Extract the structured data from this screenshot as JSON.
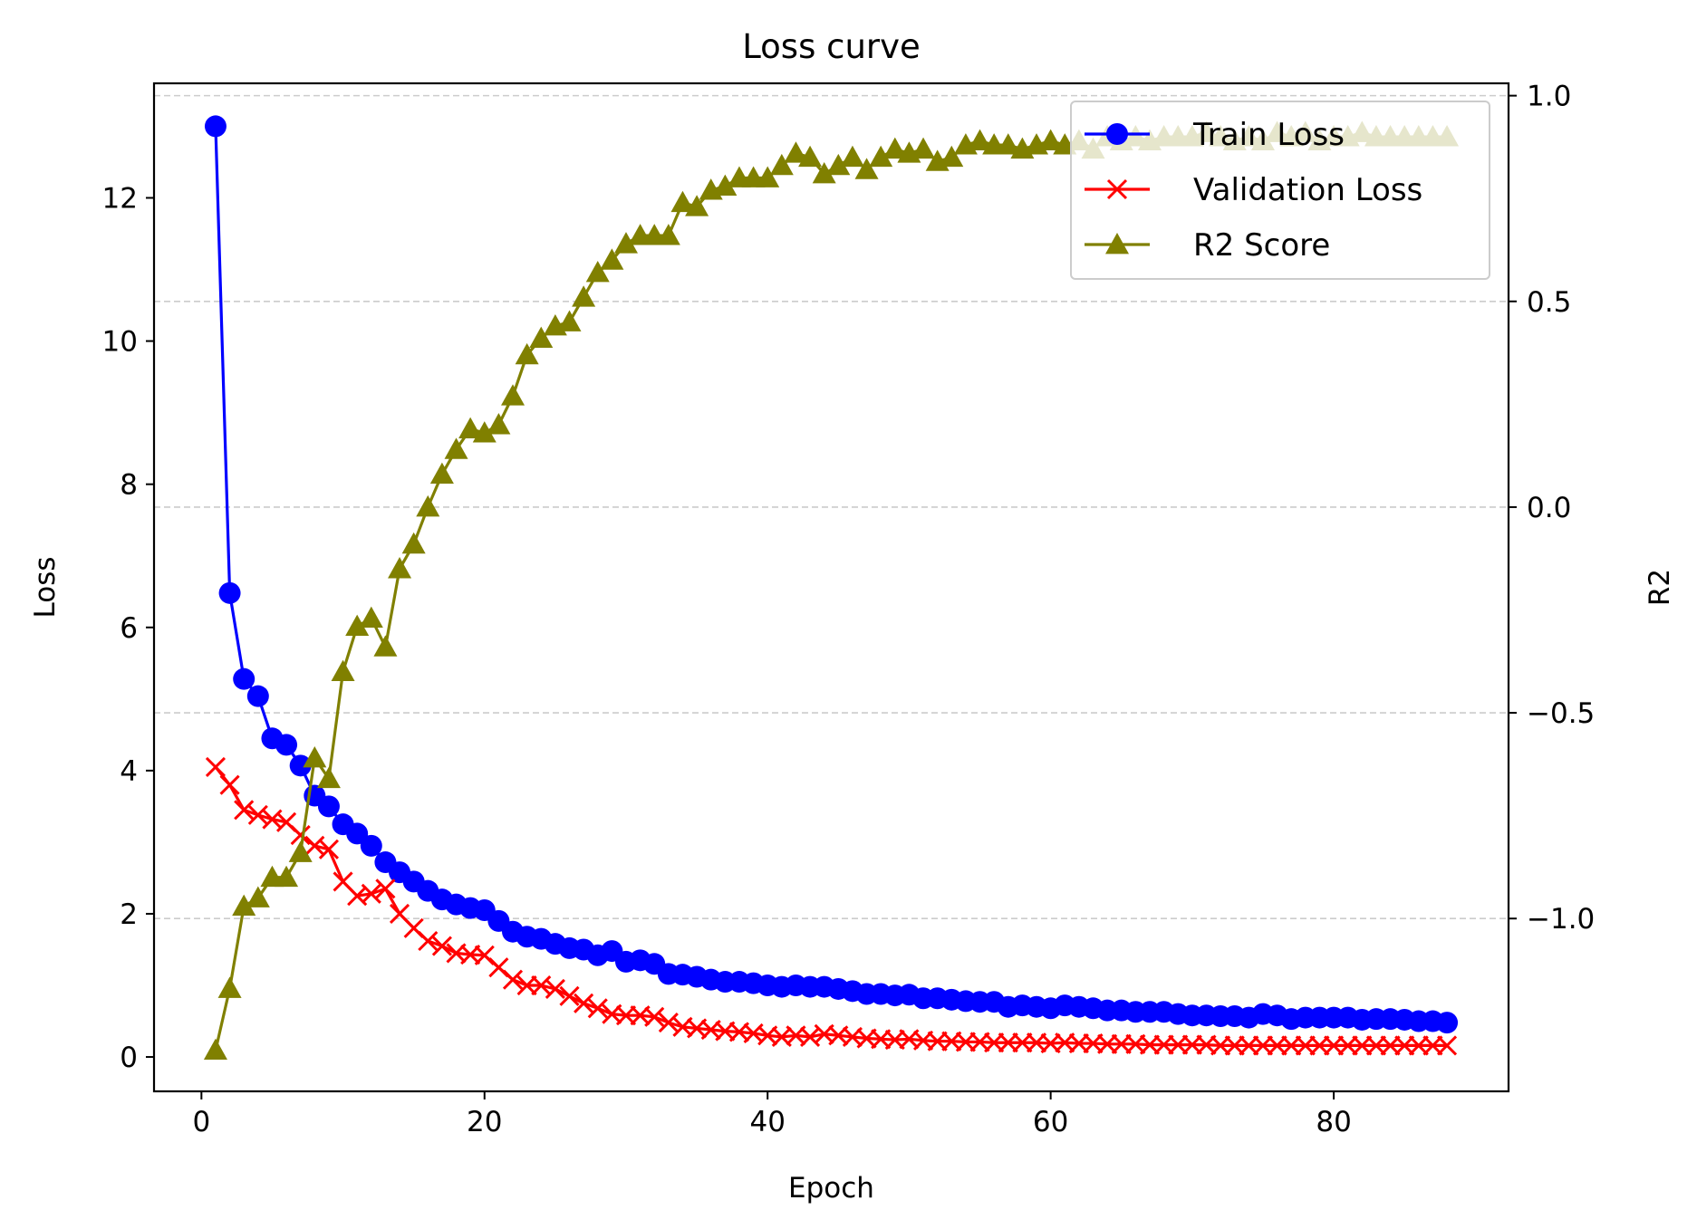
{
  "chart_data": {
    "type": "line",
    "title": "Loss curve",
    "xlabel": "Epoch",
    "ylabel": "Loss",
    "y2label": "R2",
    "xlim": [
      -3.35,
      92.35
    ],
    "ylim": [
      -0.48,
      13.6
    ],
    "y2lim": [
      -1.42,
      1.03
    ],
    "x_ticks": [
      0,
      20,
      40,
      60,
      80
    ],
    "y_ticks": [
      0,
      2,
      4,
      6,
      8,
      10,
      12
    ],
    "y2_ticks": [
      -1.0,
      -0.5,
      0.0,
      0.5,
      1.0
    ],
    "y2_tick_labels": [
      "−1.0",
      "−0.5",
      "0.0",
      "0.5",
      "1.0"
    ],
    "grid": "horizontal dashed on R2 axis",
    "legend_position": "top-right",
    "x": [
      1,
      2,
      3,
      4,
      5,
      6,
      7,
      8,
      9,
      10,
      11,
      12,
      13,
      14,
      15,
      16,
      17,
      18,
      19,
      20,
      21,
      22,
      23,
      24,
      25,
      26,
      27,
      28,
      29,
      30,
      31,
      32,
      33,
      34,
      35,
      36,
      37,
      38,
      39,
      40,
      41,
      42,
      43,
      44,
      45,
      46,
      47,
      48,
      49,
      50,
      51,
      52,
      53,
      54,
      55,
      56,
      57,
      58,
      59,
      60,
      61,
      62,
      63,
      64,
      65,
      66,
      67,
      68,
      69,
      70,
      71,
      72,
      73,
      74,
      75,
      76,
      77,
      78,
      79,
      80,
      81,
      82,
      83,
      84,
      85,
      86,
      87,
      88
    ],
    "series": [
      {
        "name": "Train Loss",
        "axis": "left",
        "color": "#0000ff",
        "marker": "circle",
        "values": [
          13.0,
          6.48,
          5.28,
          5.04,
          4.45,
          4.36,
          4.07,
          3.65,
          3.5,
          3.25,
          3.12,
          2.95,
          2.72,
          2.58,
          2.45,
          2.32,
          2.2,
          2.13,
          2.08,
          2.05,
          1.9,
          1.75,
          1.68,
          1.65,
          1.58,
          1.52,
          1.5,
          1.42,
          1.48,
          1.33,
          1.35,
          1.3,
          1.16,
          1.15,
          1.12,
          1.08,
          1.05,
          1.05,
          1.03,
          1.0,
          0.98,
          1.0,
          0.98,
          0.98,
          0.95,
          0.92,
          0.88,
          0.88,
          0.86,
          0.87,
          0.82,
          0.82,
          0.8,
          0.78,
          0.77,
          0.77,
          0.7,
          0.72,
          0.7,
          0.68,
          0.72,
          0.7,
          0.68,
          0.65,
          0.65,
          0.63,
          0.63,
          0.63,
          0.6,
          0.58,
          0.58,
          0.57,
          0.57,
          0.55,
          0.6,
          0.58,
          0.53,
          0.55,
          0.55,
          0.55,
          0.55,
          0.52,
          0.53,
          0.53,
          0.52,
          0.5,
          0.5,
          0.48
        ]
      },
      {
        "name": "Validation Loss",
        "axis": "left",
        "color": "#ff0000",
        "marker": "x",
        "values": [
          4.05,
          3.8,
          3.45,
          3.38,
          3.32,
          3.28,
          3.1,
          2.95,
          2.9,
          2.45,
          2.25,
          2.28,
          2.35,
          2.0,
          1.8,
          1.62,
          1.55,
          1.45,
          1.43,
          1.42,
          1.25,
          1.08,
          1.0,
          1.0,
          0.95,
          0.85,
          0.75,
          0.68,
          0.6,
          0.58,
          0.58,
          0.56,
          0.48,
          0.42,
          0.4,
          0.38,
          0.36,
          0.35,
          0.33,
          0.3,
          0.28,
          0.3,
          0.28,
          0.32,
          0.3,
          0.28,
          0.26,
          0.25,
          0.24,
          0.25,
          0.23,
          0.22,
          0.22,
          0.21,
          0.21,
          0.2,
          0.2,
          0.2,
          0.2,
          0.19,
          0.2,
          0.19,
          0.19,
          0.18,
          0.18,
          0.18,
          0.17,
          0.17,
          0.17,
          0.17,
          0.17,
          0.16,
          0.16,
          0.16,
          0.16,
          0.16,
          0.16,
          0.16,
          0.16,
          0.16,
          0.16,
          0.16,
          0.16,
          0.16,
          0.16,
          0.16,
          0.16,
          0.16
        ]
      },
      {
        "name": "R2 Score",
        "axis": "right",
        "color": "#808000",
        "marker": "triangle",
        "values": [
          -1.32,
          -1.17,
          -0.97,
          -0.95,
          -0.9,
          -0.9,
          -0.84,
          -0.61,
          -0.66,
          -0.4,
          -0.29,
          -0.27,
          -0.34,
          -0.15,
          -0.09,
          0.0,
          0.08,
          0.14,
          0.19,
          0.18,
          0.2,
          0.27,
          0.37,
          0.41,
          0.44,
          0.45,
          0.51,
          0.57,
          0.6,
          0.64,
          0.66,
          0.66,
          0.66,
          0.74,
          0.73,
          0.77,
          0.78,
          0.8,
          0.8,
          0.8,
          0.83,
          0.86,
          0.85,
          0.81,
          0.83,
          0.85,
          0.82,
          0.85,
          0.87,
          0.86,
          0.87,
          0.84,
          0.85,
          0.88,
          0.89,
          0.88,
          0.88,
          0.87,
          0.88,
          0.89,
          0.88,
          0.89,
          0.87,
          0.9,
          0.89,
          0.9,
          0.89,
          0.9,
          0.9,
          0.9,
          0.91,
          0.9,
          0.89,
          0.9,
          0.89,
          0.91,
          0.9,
          0.91,
          0.89,
          0.9,
          0.9,
          0.91,
          0.9,
          0.9,
          0.9,
          0.9,
          0.9,
          0.9
        ]
      }
    ]
  }
}
